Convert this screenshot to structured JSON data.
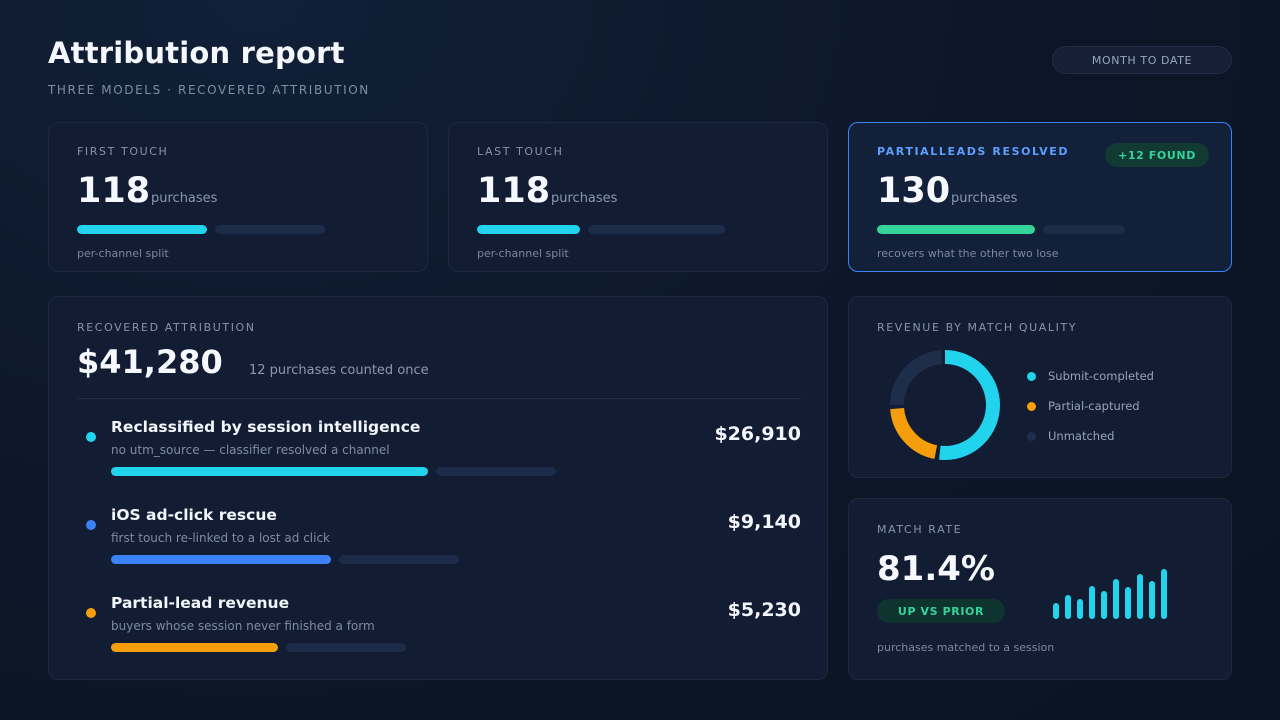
{
  "header": {
    "title": "Attribution report",
    "subtitle": "THREE MODELS · RECOVERED ATTRIBUTION",
    "period_button": "MONTH TO DATE"
  },
  "kpis": [
    {
      "label": "FIRST TOUCH",
      "value": "118",
      "unit": "purchases",
      "note": "per-channel split",
      "bar_fill": 0.59,
      "color": "#22d3ee"
    },
    {
      "label": "LAST TOUCH",
      "value": "118",
      "unit": "purchases",
      "note": "per-channel split",
      "bar_fill": 0.47,
      "color": "#22d3ee"
    },
    {
      "label": "PARTIALLEADS RESOLVED",
      "badge": "+12 FOUND",
      "value": "130",
      "unit": "purchases",
      "note": "recovers what the other two lose",
      "bar_fill": 0.72,
      "color": "#34d399"
    }
  ],
  "recovered": {
    "label": "RECOVERED ATTRIBUTION",
    "total": "$41,280",
    "note": "12 purchases counted once",
    "rows": [
      {
        "title": "Reclassified by session intelligence",
        "subtitle": "no utm_source — classifier resolved a channel",
        "amount": "$26,910",
        "color": "#22d3ee",
        "dot_color": "#22d3ee",
        "bar_fill": 0.72
      },
      {
        "title": "iOS ad-click rescue",
        "subtitle": "first touch re-linked to a lost ad click",
        "amount": "$9,140",
        "color": "#3b82f6",
        "dot_color": "#3b82f6",
        "bar_fill": 0.5
      },
      {
        "title": "Partial-lead revenue",
        "subtitle": "buyers whose session never finished a form",
        "amount": "$5,230",
        "color": "#f59e0b",
        "dot_color": "#f59e0b",
        "bar_fill": 0.38
      }
    ]
  },
  "revenue_by_match": {
    "label": "REVENUE BY MATCH QUALITY",
    "legend": [
      {
        "label": "Submit-completed",
        "color": "#22d3ee",
        "share": 0.53
      },
      {
        "label": "Partial-captured",
        "color": "#f59e0b",
        "share": 0.22
      },
      {
        "label": "Unmatched",
        "color": "#1e2d4a",
        "share": 0.25
      }
    ]
  },
  "match_rate": {
    "label": "MATCH RATE",
    "value": "81.4%",
    "badge": "UP VS PRIOR",
    "note": "purchases matched to a session",
    "spark_values": [
      16,
      24,
      20,
      33,
      28,
      40,
      32,
      45,
      38,
      50
    ],
    "spark_color": "#22d3ee"
  }
}
